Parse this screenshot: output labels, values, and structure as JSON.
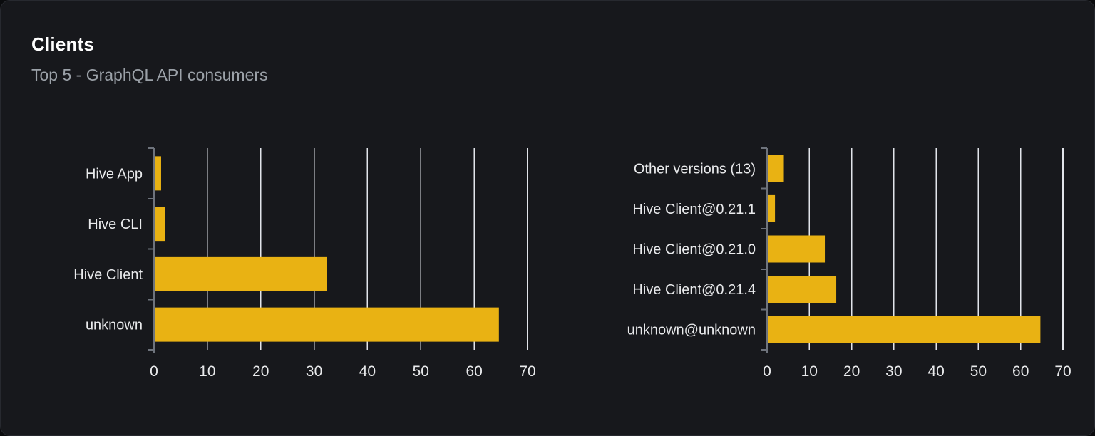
{
  "card": {
    "title": "Clients",
    "subtitle": "Top 5 - GraphQL API consumers"
  },
  "colors": {
    "bar": "#e9b213",
    "grid": "#e2e4ea",
    "axis": "#6e737c",
    "text": "#e9eaec",
    "card_bg": "#17181c",
    "page_bg": "#0a0b0d",
    "title": "#ffffff",
    "subtitle": "#9ba1a8"
  },
  "chart_data": [
    {
      "type": "bar",
      "orientation": "horizontal",
      "name": "clients-by-name",
      "categories": [
        "Hive App",
        "Hive CLI",
        "Hive Client",
        "unknown"
      ],
      "values": [
        1.2,
        1.9,
        32.2,
        64.5
      ],
      "xlim": [
        0,
        70
      ],
      "xticks": [
        0,
        10,
        20,
        30,
        40,
        50,
        60,
        70
      ],
      "grid": true,
      "legend": false
    },
    {
      "type": "bar",
      "orientation": "horizontal",
      "name": "clients-by-version",
      "categories": [
        "Other versions (13)",
        "Hive Client@0.21.1",
        "Hive Client@0.21.0",
        "Hive Client@0.21.4",
        "unknown@unknown"
      ],
      "values": [
        3.8,
        1.7,
        13.5,
        16.2,
        64.5
      ],
      "xlim": [
        0,
        70
      ],
      "xticks": [
        0,
        10,
        20,
        30,
        40,
        50,
        60,
        70
      ],
      "grid": true,
      "legend": false
    }
  ]
}
